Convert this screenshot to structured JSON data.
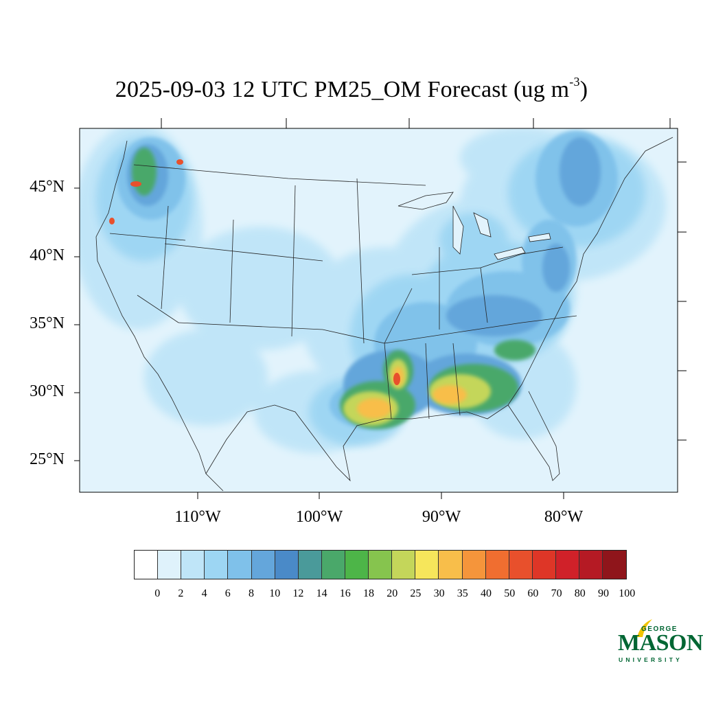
{
  "title_main": "2025-09-03 12 UTC PM25_OM Forecast (ug m",
  "title_exp": "-3",
  "title_close": ")",
  "lat_labels": [
    "45°N",
    "40°N",
    "35°N",
    "30°N",
    "25°N"
  ],
  "lon_labels": [
    "110°W",
    "100°W",
    "90°W",
    "80°W"
  ],
  "colorbar": {
    "levels": [
      "0",
      "2",
      "4",
      "6",
      "8",
      "10",
      "12",
      "14",
      "16",
      "18",
      "20",
      "25",
      "30",
      "35",
      "40",
      "50",
      "60",
      "70",
      "80",
      "90",
      "100"
    ],
    "colors": [
      "#ffffff",
      "#dff2fb",
      "#bfe5f8",
      "#9dd6f3",
      "#7fc1ea",
      "#64a6db",
      "#4a8ac8",
      "#4a9a9a",
      "#4aa86a",
      "#4db548",
      "#86c44e",
      "#c4d65a",
      "#f6e65b",
      "#f8be4a",
      "#f5953b",
      "#f06e30",
      "#e8502c",
      "#de3627",
      "#d02129",
      "#b51a24",
      "#8f151b"
    ]
  },
  "logo": {
    "line1": "GEORGE",
    "line2": "MASON",
    "line3": "UNIVERSITY",
    "color": "#006633",
    "accent": "#f2c500"
  },
  "map_style": {
    "background": "#e0f2fb",
    "ocean": "#e2f3fc",
    "land_base": "#d7eefa"
  }
}
